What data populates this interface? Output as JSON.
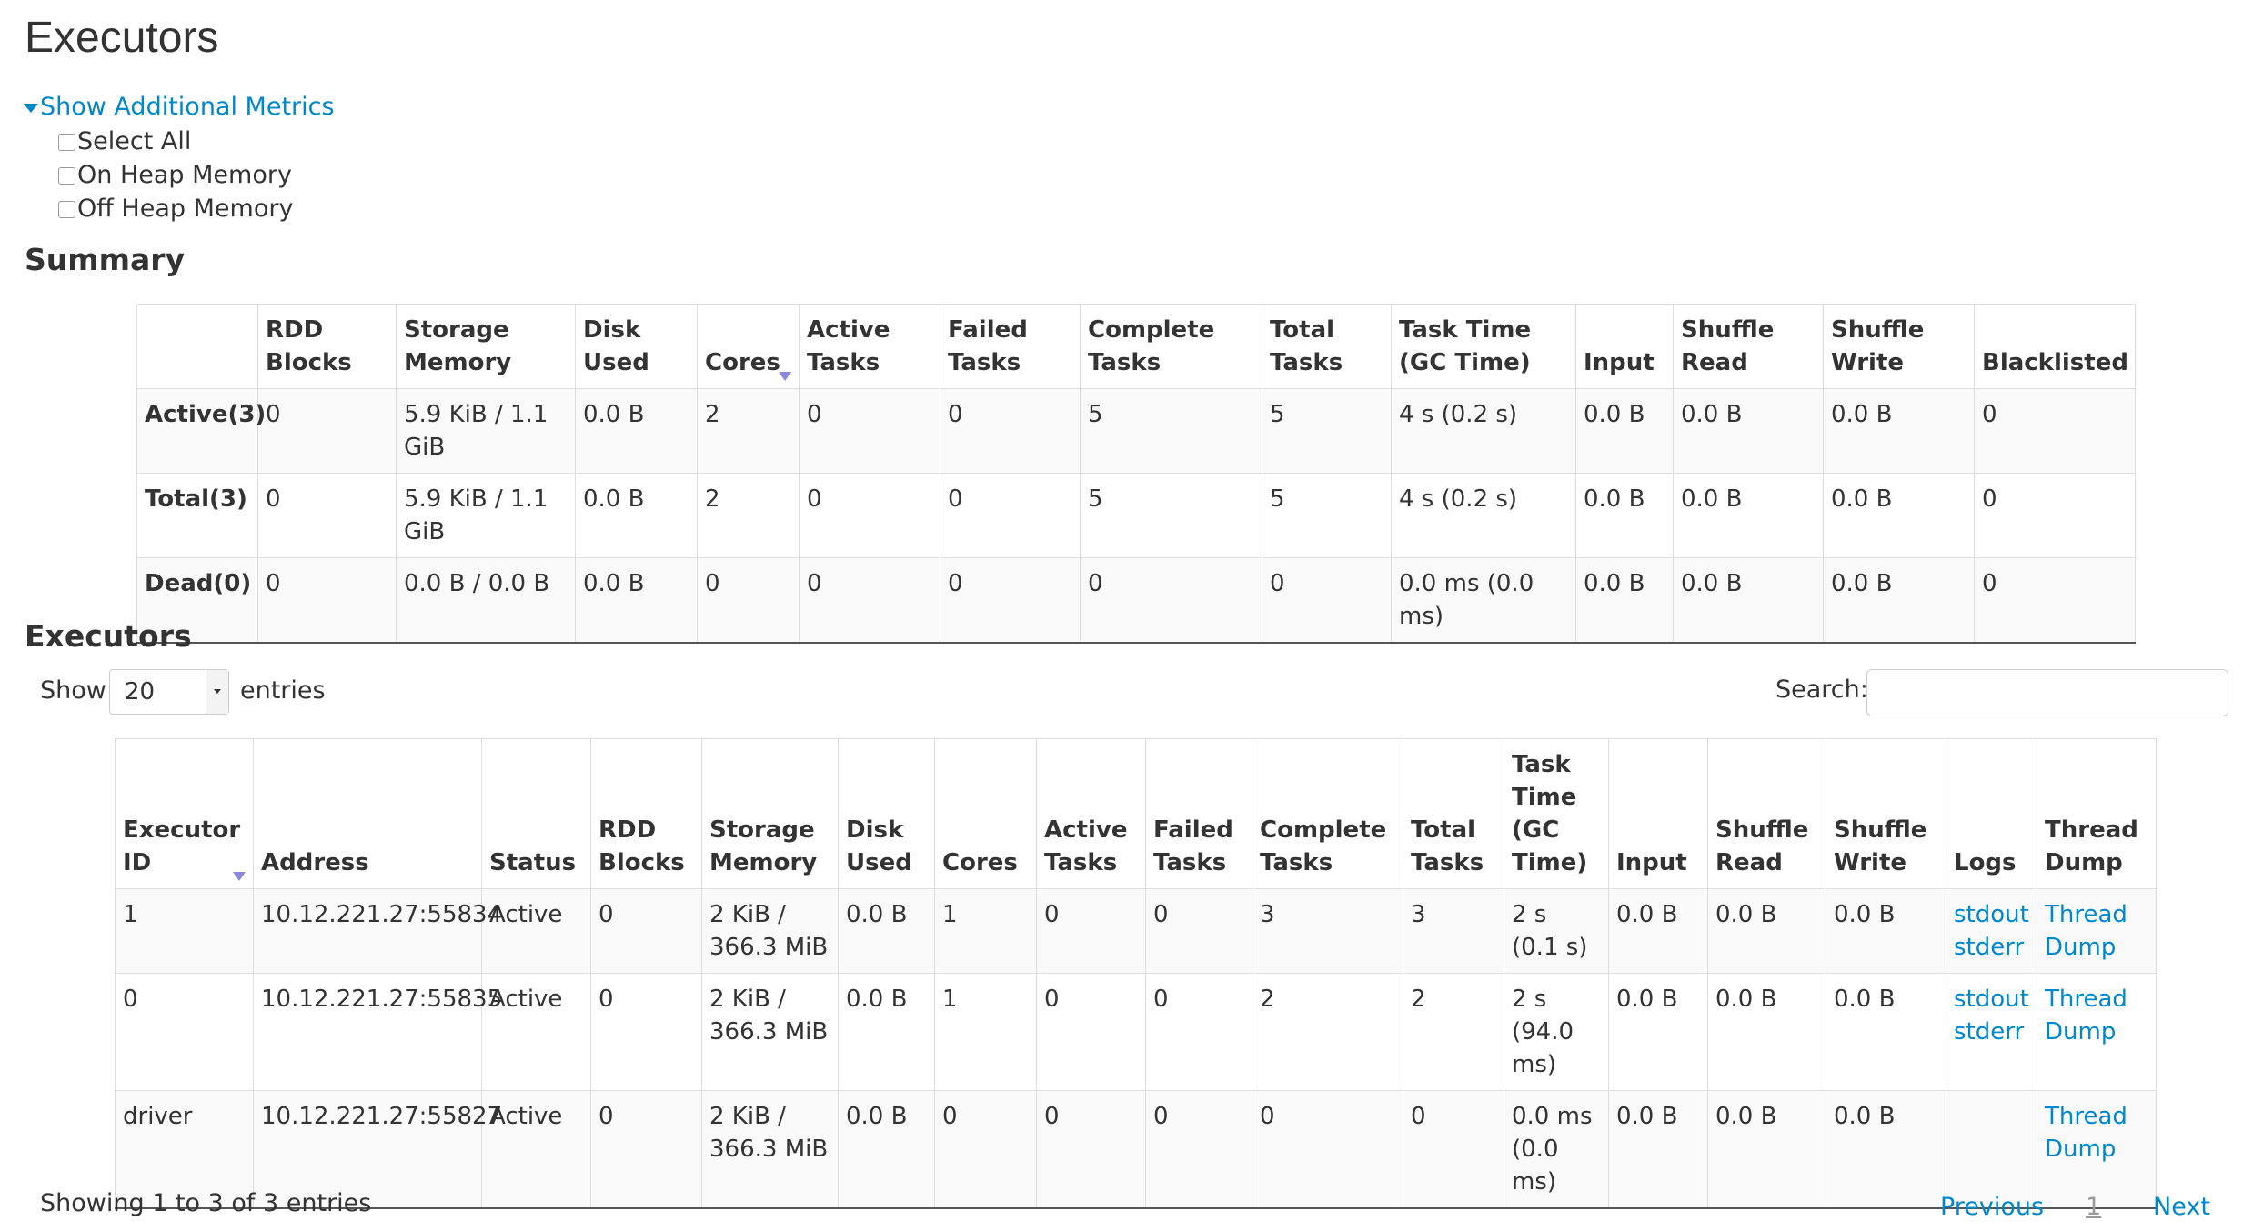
{
  "page_title": "Executors",
  "metrics_toggle": "Show Additional Metrics",
  "metric_options": [
    "Select All",
    "On Heap Memory",
    "Off Heap Memory"
  ],
  "summary": {
    "title": "Summary",
    "headers": [
      "",
      "RDD Blocks",
      "Storage Memory",
      "Disk Used",
      "Cores",
      "Active Tasks",
      "Failed Tasks",
      "Complete Tasks",
      "Total Tasks",
      "Task Time (GC Time)",
      "Input",
      "Shuffle Read",
      "Shuffle Write",
      "Blacklisted"
    ],
    "rows": [
      [
        "Active(3)",
        "0",
        "5.9 KiB / 1.1 GiB",
        "0.0 B",
        "2",
        "0",
        "0",
        "5",
        "5",
        "4 s (0.2 s)",
        "0.0 B",
        "0.0 B",
        "0.0 B",
        "0"
      ],
      [
        "Total(3)",
        "0",
        "5.9 KiB / 1.1 GiB",
        "0.0 B",
        "2",
        "0",
        "0",
        "5",
        "5",
        "4 s (0.2 s)",
        "0.0 B",
        "0.0 B",
        "0.0 B",
        "0"
      ],
      [
        "Dead(0)",
        "0",
        "0.0 B / 0.0 B",
        "0.0 B",
        "0",
        "0",
        "0",
        "0",
        "0",
        "0.0 ms (0.0 ms)",
        "0.0 B",
        "0.0 B",
        "0.0 B",
        "0"
      ]
    ]
  },
  "executors": {
    "title": "Executors",
    "show_label": "Show",
    "page_size": "20",
    "entries_label": "entries",
    "search_label": "Search:",
    "search_value": "",
    "headers": [
      "Executor ID",
      "Address",
      "Status",
      "RDD Blocks",
      "Storage Memory",
      "Disk Used",
      "Cores",
      "Active Tasks",
      "Failed Tasks",
      "Complete Tasks",
      "Total Tasks",
      "Task Time (GC Time)",
      "Input",
      "Shuffle Read",
      "Shuffle Write",
      "Logs",
      "Thread Dump"
    ],
    "rows": [
      {
        "cells": [
          "1",
          "10.12.221.27:55834",
          "Active",
          "0",
          "2 KiB / 366.3 MiB",
          "0.0 B",
          "1",
          "0",
          "0",
          "3",
          "3",
          "2 s (0.1 s)",
          "0.0 B",
          "0.0 B",
          "0.0 B"
        ],
        "logs": [
          "stdout",
          "stderr"
        ],
        "thread_dump": "Thread Dump"
      },
      {
        "cells": [
          "0",
          "10.12.221.27:55835",
          "Active",
          "0",
          "2 KiB / 366.3 MiB",
          "0.0 B",
          "1",
          "0",
          "0",
          "2",
          "2",
          "2 s (94.0 ms)",
          "0.0 B",
          "0.0 B",
          "0.0 B"
        ],
        "logs": [
          "stdout",
          "stderr"
        ],
        "thread_dump": "Thread Dump"
      },
      {
        "cells": [
          "driver",
          "10.12.221.27:55827",
          "Active",
          "0",
          "2 KiB / 366.3 MiB",
          "0.0 B",
          "0",
          "0",
          "0",
          "0",
          "0",
          "0.0 ms (0.0 ms)",
          "0.0 B",
          "0.0 B",
          "0.0 B"
        ],
        "logs": [],
        "thread_dump": "Thread Dump"
      }
    ],
    "info": "Showing 1 to 3 of 3 entries",
    "pagination": {
      "previous": "Previous",
      "current": "1",
      "next": "Next"
    }
  },
  "colors": {
    "link": "#0088cc",
    "text": "#333333",
    "border": "#dddddd",
    "stripe": "#f9f9f9"
  }
}
